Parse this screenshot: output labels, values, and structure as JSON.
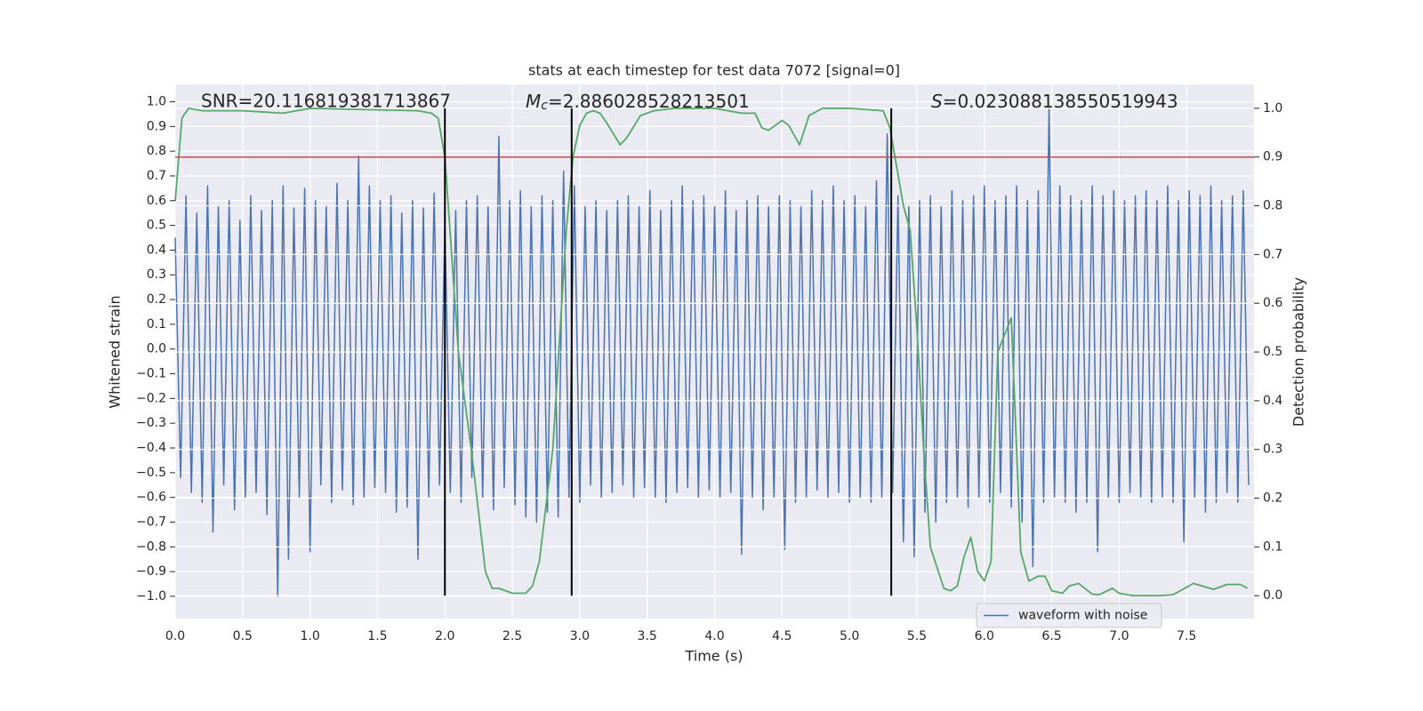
{
  "chart_data": {
    "type": "line",
    "title": "stats at each timestep for test data 7072 [signal=0]",
    "xlabel": "Time (s)",
    "ylabel": "Whitened strain",
    "y2label": "Detection probability",
    "annotations": [
      "SNR=20.116819381713867",
      [
        "M",
        "c",
        "=2.886028528213501"
      ],
      [
        "S",
        "=0.023088138550519943"
      ]
    ],
    "xlim": [
      0,
      8
    ],
    "ylim": [
      -1.09,
      1.07
    ],
    "y2lim": [
      -0.047,
      1.049
    ],
    "xticks": [
      {
        "value": 0,
        "label": "0.0"
      },
      {
        "value": 0.5,
        "label": "0.5"
      },
      {
        "value": 1,
        "label": "1.0"
      },
      {
        "value": 1.5,
        "label": "1.5"
      },
      {
        "value": 2,
        "label": "2.0"
      },
      {
        "value": 2.5,
        "label": "2.5"
      },
      {
        "value": 3,
        "label": "3.0"
      },
      {
        "value": 3.5,
        "label": "3.5"
      },
      {
        "value": 4,
        "label": "4.0"
      },
      {
        "value": 4.5,
        "label": "4.5"
      },
      {
        "value": 5,
        "label": "5.0"
      },
      {
        "value": 5.5,
        "label": "5.5"
      },
      {
        "value": 6,
        "label": "6.0"
      },
      {
        "value": 6.5,
        "label": "6.5"
      },
      {
        "value": 7,
        "label": "7.0"
      },
      {
        "value": 7.5,
        "label": "7.5"
      }
    ],
    "yticks": [
      {
        "value": -1,
        "label": "−1.0"
      },
      {
        "value": -0.9,
        "label": "−0.9"
      },
      {
        "value": -0.8,
        "label": "−0.8"
      },
      {
        "value": -0.7,
        "label": "−0.7"
      },
      {
        "value": -0.6,
        "label": "−0.6"
      },
      {
        "value": -0.5,
        "label": "−0.5"
      },
      {
        "value": -0.4,
        "label": "−0.4"
      },
      {
        "value": -0.3,
        "label": "−0.3"
      },
      {
        "value": -0.2,
        "label": "−0.2"
      },
      {
        "value": -0.1,
        "label": "−0.1"
      },
      {
        "value": 0,
        "label": "0.0"
      },
      {
        "value": 0.1,
        "label": "0.1"
      },
      {
        "value": 0.2,
        "label": "0.2"
      },
      {
        "value": 0.3,
        "label": "0.3"
      },
      {
        "value": 0.4,
        "label": "0.4"
      },
      {
        "value": 0.5,
        "label": "0.5"
      },
      {
        "value": 0.6,
        "label": "0.6"
      },
      {
        "value": 0.7,
        "label": "0.7"
      },
      {
        "value": 0.8,
        "label": "0.8"
      },
      {
        "value": 0.9,
        "label": "0.9"
      },
      {
        "value": 1,
        "label": "1.0"
      }
    ],
    "y2ticks": [
      {
        "value": 0,
        "label": "0.0"
      },
      {
        "value": 0.1,
        "label": "0.1"
      },
      {
        "value": 0.2,
        "label": "0.2"
      },
      {
        "value": 0.3,
        "label": "0.3"
      },
      {
        "value": 0.4,
        "label": "0.4"
      },
      {
        "value": 0.5,
        "label": "0.5"
      },
      {
        "value": 0.6,
        "label": "0.6"
      },
      {
        "value": 0.7,
        "label": "0.7"
      },
      {
        "value": 0.8,
        "label": "0.8"
      },
      {
        "value": 0.9,
        "label": "0.9"
      },
      {
        "value": 1,
        "label": "1.0"
      }
    ],
    "grid": true,
    "legend": "lower right",
    "series": [
      {
        "name": "waveform with noise",
        "color": "#4c72b0",
        "x": [
          0,
          0.04,
          0.08,
          0.12,
          0.16,
          0.2,
          0.24,
          0.28,
          0.32,
          0.36,
          0.4,
          0.44,
          0.48,
          0.52,
          0.56,
          0.6,
          0.64,
          0.68,
          0.72,
          0.76,
          0.8,
          0.84,
          0.88,
          0.92,
          0.96,
          1,
          1.04,
          1.08,
          1.12,
          1.16,
          1.2,
          1.24,
          1.28,
          1.32,
          1.36,
          1.4,
          1.44,
          1.48,
          1.52,
          1.56,
          1.6,
          1.64,
          1.68,
          1.72,
          1.76,
          1.8,
          1.84,
          1.88,
          1.92,
          1.96,
          2,
          2.04,
          2.08,
          2.12,
          2.16,
          2.2,
          2.24,
          2.28,
          2.32,
          2.36,
          2.4,
          2.44,
          2.48,
          2.52,
          2.56,
          2.6,
          2.64,
          2.68,
          2.72,
          2.76,
          2.8,
          2.84,
          2.88,
          2.92,
          2.96,
          3,
          3.04,
          3.08,
          3.12,
          3.16,
          3.2,
          3.24,
          3.28,
          3.32,
          3.36,
          3.4,
          3.44,
          3.48,
          3.52,
          3.56,
          3.6,
          3.64,
          3.68,
          3.72,
          3.76,
          3.8,
          3.84,
          3.88,
          3.92,
          3.96,
          4,
          4.04,
          4.08,
          4.12,
          4.16,
          4.2,
          4.24,
          4.28,
          4.32,
          4.36,
          4.4,
          4.44,
          4.48,
          4.52,
          4.56,
          4.6,
          4.64,
          4.68,
          4.72,
          4.76,
          4.8,
          4.84,
          4.88,
          4.92,
          4.96,
          5,
          5.04,
          5.08,
          5.12,
          5.16,
          5.2,
          5.24,
          5.28,
          5.32,
          5.36,
          5.4,
          5.44,
          5.48,
          5.52,
          5.56,
          5.6,
          5.64,
          5.68,
          5.72,
          5.76,
          5.8,
          5.84,
          5.88,
          5.92,
          5.96,
          6,
          6.04,
          6.08,
          6.12,
          6.16,
          6.2,
          6.24,
          6.28,
          6.32,
          6.36,
          6.4,
          6.44,
          6.48,
          6.52,
          6.56,
          6.6,
          6.64,
          6.68,
          6.72,
          6.76,
          6.8,
          6.84,
          6.88,
          6.92,
          6.96,
          7,
          7.04,
          7.08,
          7.12,
          7.16,
          7.2,
          7.24,
          7.28,
          7.32,
          7.36,
          7.4,
          7.44,
          7.48,
          7.52,
          7.56,
          7.6,
          7.64,
          7.68,
          7.72,
          7.76,
          7.8,
          7.84,
          7.88,
          7.92,
          7.96
        ],
        "values": [
          0.45,
          -0.52,
          0.62,
          -0.58,
          0.55,
          -0.62,
          0.66,
          -0.74,
          0.58,
          -0.55,
          0.6,
          -0.65,
          0.52,
          -0.6,
          0.62,
          -0.58,
          0.56,
          -0.67,
          0.6,
          -1.0,
          0.66,
          -0.85,
          0.57,
          -0.6,
          0.65,
          -0.82,
          0.6,
          -0.55,
          0.58,
          -0.62,
          0.67,
          -0.57,
          0.6,
          -0.63,
          0.78,
          -0.6,
          0.66,
          -0.56,
          0.6,
          -0.58,
          0.62,
          -0.66,
          0.55,
          -0.64,
          0.6,
          -0.85,
          0.57,
          -0.6,
          0.63,
          -0.55,
          0.5,
          -0.58,
          0.56,
          -0.62,
          0.6,
          -0.52,
          0.62,
          -0.6,
          0.58,
          -0.65,
          0.86,
          -0.56,
          0.6,
          -0.63,
          0.64,
          -0.68,
          0.58,
          -0.7,
          0.62,
          -0.66,
          0.6,
          -0.68,
          0.72,
          -0.6,
          0.66,
          -0.62,
          0.58,
          -0.55,
          0.6,
          -0.6,
          0.56,
          -0.58,
          0.6,
          -0.55,
          0.62,
          -0.6,
          0.58,
          -0.56,
          0.64,
          -0.6,
          0.56,
          -0.62,
          0.6,
          -0.58,
          0.66,
          -0.56,
          0.6,
          -0.6,
          0.62,
          -0.57,
          0.58,
          -0.6,
          0.64,
          -0.58,
          0.56,
          -0.83,
          0.6,
          -0.6,
          0.62,
          -0.65,
          0.58,
          -0.6,
          0.62,
          -0.81,
          0.6,
          -0.62,
          0.58,
          -0.6,
          0.64,
          -0.57,
          0.6,
          -0.6,
          0.66,
          -0.58,
          0.6,
          -0.62,
          0.62,
          -0.6,
          0.58,
          -0.62,
          0.68,
          -0.6,
          0.87,
          -0.58,
          0.62,
          -0.78,
          0.58,
          -0.84,
          0.6,
          -0.66,
          0.62,
          -0.7,
          0.58,
          -0.62,
          0.64,
          -0.6,
          0.6,
          -0.64,
          0.62,
          -0.6,
          0.66,
          -0.62,
          0.6,
          -0.58,
          0.62,
          -0.64,
          0.66,
          -0.7,
          0.6,
          -0.88,
          0.64,
          -0.62,
          0.98,
          -0.6,
          0.66,
          -0.62,
          0.62,
          -0.66,
          0.6,
          -0.62,
          0.66,
          -0.82,
          0.62,
          -0.6,
          0.64,
          -0.62,
          0.6,
          -0.58,
          0.62,
          -0.6,
          0.64,
          -0.62,
          0.6,
          -0.6,
          0.66,
          -0.62,
          0.6,
          -0.78,
          0.64,
          -0.6,
          0.62,
          -0.66,
          0.66,
          -0.62,
          0.6,
          -0.58,
          0.62,
          -0.62,
          0.64,
          -0.55
        ]
      },
      {
        "color": "#55a868",
        "axis": "y2",
        "x": [
          0,
          0.05,
          0.1,
          0.2,
          0.5,
          0.8,
          1,
          1.8,
          1.9,
          1.95,
          2,
          2.1,
          2.2,
          2.3,
          2.35,
          2.4,
          2.5,
          2.6,
          2.65,
          2.7,
          2.8,
          2.9,
          2.95,
          3,
          3.05,
          3.1,
          3.15,
          3.2,
          3.3,
          3.35,
          3.45,
          3.55,
          3.7,
          4,
          4.1,
          4.2,
          4.3,
          4.35,
          4.4,
          4.5,
          4.55,
          4.63,
          4.7,
          4.8,
          5,
          5.25,
          5.3,
          5.4,
          5.45,
          5.5,
          5.55,
          5.6,
          5.7,
          5.75,
          5.8,
          5.85,
          5.9,
          5.95,
          6,
          6.05,
          6.1,
          6.2,
          6.27,
          6.33,
          6.4,
          6.45,
          6.5,
          6.58,
          6.63,
          6.7,
          6.8,
          6.85,
          6.95,
          7,
          7.1,
          7.3,
          7.4,
          7.55,
          7.7,
          7.8,
          7.9,
          7.95
        ],
        "values": [
          0.81,
          0.98,
          1.0,
          0.995,
          0.995,
          0.99,
          1.0,
          0.995,
          0.99,
          0.98,
          0.9,
          0.5,
          0.29,
          0.05,
          0.015,
          0.015,
          0.005,
          0.005,
          0.02,
          0.07,
          0.3,
          0.75,
          0.9,
          0.965,
          0.99,
          0.995,
          0.99,
          0.97,
          0.925,
          0.94,
          0.985,
          0.995,
          1.0,
          1.0,
          0.995,
          0.99,
          0.99,
          0.96,
          0.955,
          0.975,
          0.965,
          0.925,
          0.985,
          1.0,
          1.0,
          0.995,
          0.96,
          0.8,
          0.75,
          0.55,
          0.3,
          0.1,
          0.015,
          0.01,
          0.02,
          0.08,
          0.12,
          0.05,
          0.03,
          0.07,
          0.5,
          0.57,
          0.09,
          0.03,
          0.04,
          0.04,
          0.01,
          0.005,
          0.02,
          0.025,
          0.003,
          0.002,
          0.015,
          0.005,
          0.0,
          0.0,
          0.002,
          0.025,
          0.013,
          0.023,
          0.023,
          0.015
        ]
      }
    ],
    "hlines": [
      {
        "value": 0.9,
        "axis": "y2",
        "color": "#c44e52"
      }
    ],
    "vlines": {
      "values": [
        2.0,
        2.94,
        5.31
      ],
      "range": [
        0,
        1
      ],
      "axis": "y2",
      "color": "#000000"
    }
  }
}
